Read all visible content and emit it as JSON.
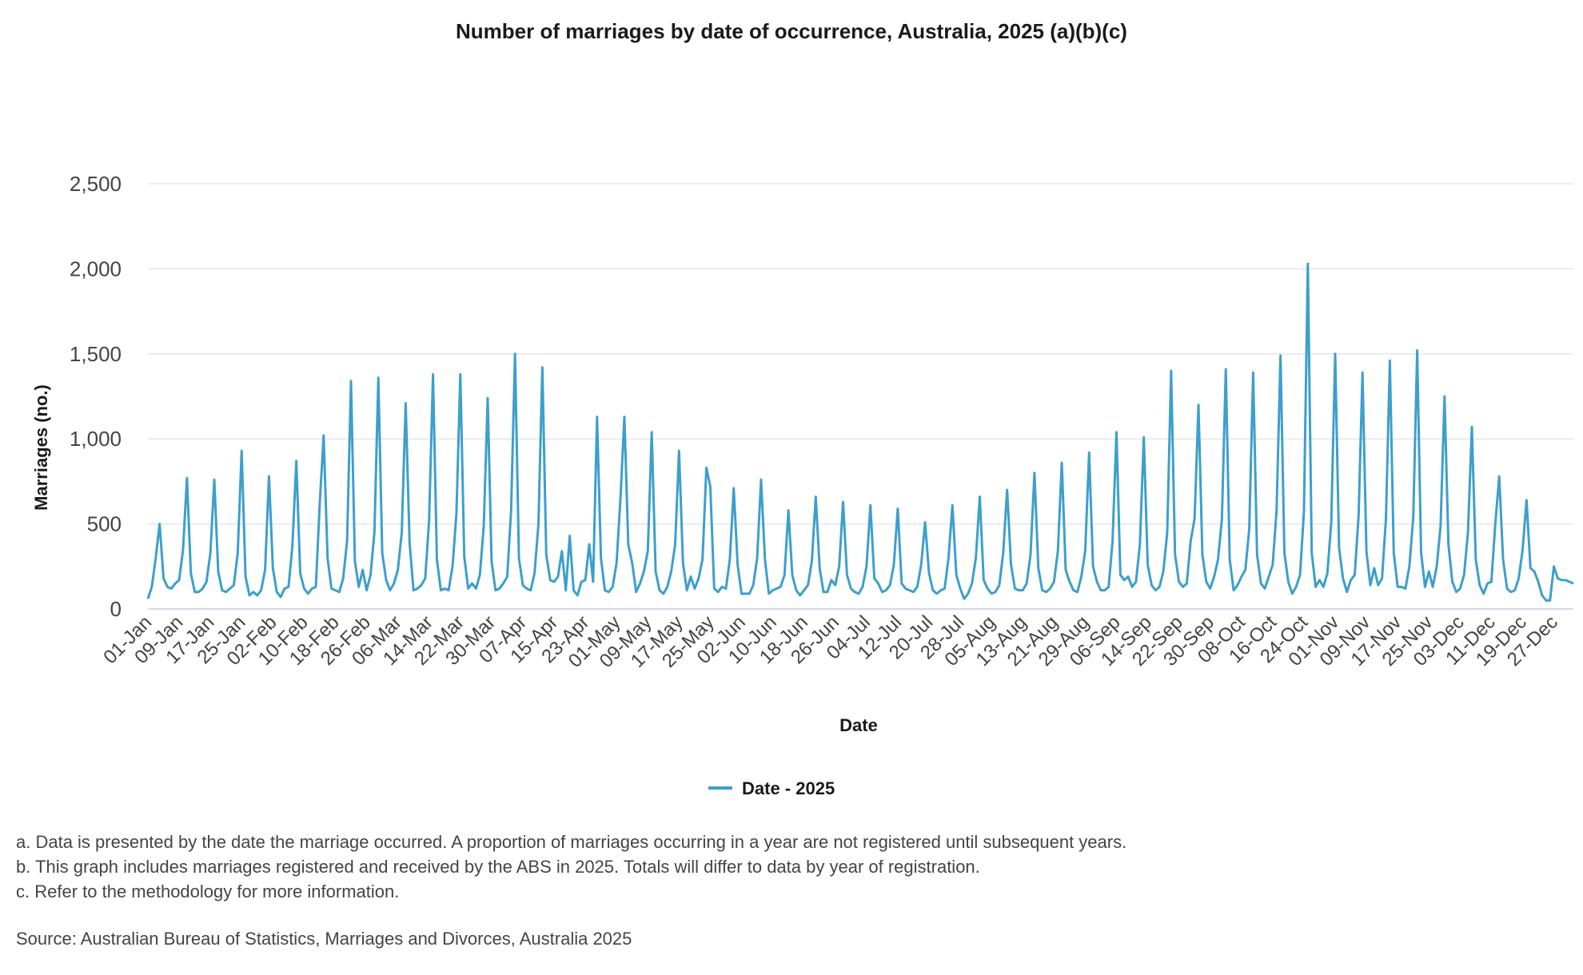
{
  "chart_data": {
    "type": "line",
    "title": "Number of marriages by date of occurrence, Australia, 2025 (a)(b)(c)",
    "xlabel": "Date",
    "ylabel": "Marriages (no.)",
    "ylim": [
      0,
      2500
    ],
    "yticks": [
      0,
      500,
      1000,
      1500,
      2000,
      2500
    ],
    "ytick_labels": [
      "0",
      "500",
      "1,000",
      "1,500",
      "2,000",
      "2,500"
    ],
    "grid": true,
    "legend_position": "bottom",
    "xtick_labels": [
      "01-Jan",
      "09-Jan",
      "17-Jan",
      "25-Jan",
      "02-Feb",
      "10-Feb",
      "18-Feb",
      "26-Feb",
      "06-Mar",
      "14-Mar",
      "22-Mar",
      "30-Mar",
      "07-Apr",
      "15-Apr",
      "23-Apr",
      "01-May",
      "09-May",
      "17-May",
      "25-May",
      "02-Jun",
      "10-Jun",
      "18-Jun",
      "26-Jun",
      "04-Jul",
      "12-Jul",
      "20-Jul",
      "28-Jul",
      "05-Aug",
      "13-Aug",
      "21-Aug",
      "29-Aug",
      "06-Sep",
      "14-Sep",
      "22-Sep",
      "30-Sep",
      "08-Oct",
      "16-Oct",
      "24-Oct",
      "01-Nov",
      "09-Nov",
      "17-Nov",
      "25-Nov",
      "03-Dec",
      "11-Dec",
      "19-Dec",
      "27-Dec"
    ],
    "x_start": "2025-01-01",
    "x_end": "2025-12-31",
    "series": [
      {
        "name": "Date - 2025",
        "color": "#3d9fcc",
        "values": [
          60,
          130,
          300,
          500,
          180,
          130,
          120,
          150,
          170,
          350,
          770,
          210,
          100,
          100,
          120,
          160,
          330,
          760,
          220,
          110,
          100,
          120,
          140,
          330,
          930,
          190,
          80,
          100,
          80,
          110,
          230,
          780,
          240,
          100,
          70,
          120,
          130,
          370,
          870,
          210,
          120,
          90,
          120,
          130,
          620,
          1020,
          300,
          120,
          110,
          100,
          180,
          400,
          1340,
          280,
          130,
          230,
          110,
          200,
          450,
          1360,
          330,
          170,
          110,
          150,
          230,
          450,
          1210,
          390,
          110,
          120,
          140,
          180,
          520,
          1380,
          290,
          110,
          120,
          110,
          250,
          560,
          1380,
          310,
          120,
          150,
          120,
          200,
          490,
          1240,
          280,
          110,
          120,
          150,
          190,
          580,
          1500,
          300,
          140,
          120,
          110,
          210,
          500,
          1420,
          320,
          170,
          160,
          190,
          340,
          110,
          430,
          110,
          80,
          160,
          170,
          380,
          160,
          1130,
          300,
          110,
          100,
          130,
          270,
          650,
          1130,
          380,
          270,
          100,
          150,
          220,
          340,
          1040,
          220,
          110,
          90,
          130,
          220,
          380,
          930,
          270,
          110,
          190,
          120,
          180,
          290,
          830,
          720,
          120,
          100,
          130,
          120,
          290,
          710,
          260,
          90,
          90,
          90,
          140,
          300,
          760,
          290,
          90,
          110,
          120,
          130,
          200,
          580,
          200,
          110,
          80,
          110,
          140,
          280,
          660,
          240,
          100,
          100,
          170,
          140,
          250,
          630,
          200,
          120,
          100,
          90,
          130,
          250,
          610,
          180,
          150,
          100,
          110,
          140,
          260,
          590,
          150,
          120,
          110,
          100,
          130,
          260,
          510,
          210,
          110,
          90,
          110,
          120,
          300,
          610,
          200,
          120,
          60,
          90,
          150,
          300,
          660,
          170,
          120,
          90,
          100,
          140,
          330,
          700,
          260,
          120,
          110,
          110,
          150,
          320,
          800,
          240,
          110,
          100,
          120,
          160,
          340,
          860,
          230,
          160,
          110,
          100,
          190,
          340,
          920,
          250,
          160,
          110,
          110,
          130,
          400,
          1040,
          200,
          170,
          190,
          130,
          160,
          380,
          1010,
          260,
          140,
          110,
          130,
          220,
          450,
          1400,
          320,
          160,
          130,
          150,
          400,
          530,
          1200,
          320,
          160,
          120,
          190,
          290,
          530,
          1410,
          290,
          110,
          140,
          190,
          230,
          470,
          1390,
          320,
          150,
          120,
          190,
          260,
          580,
          1490,
          330,
          160,
          90,
          130,
          200,
          570,
          2030,
          330,
          130,
          170,
          130,
          210,
          510,
          1500,
          360,
          180,
          100,
          170,
          200,
          550,
          1390,
          340,
          140,
          240,
          140,
          180,
          530,
          1460,
          330,
          130,
          130,
          120,
          250,
          540,
          1520,
          330,
          130,
          220,
          130,
          250,
          490,
          1250,
          380,
          160,
          100,
          120,
          200,
          450,
          1070,
          290,
          140,
          90,
          150,
          160,
          500,
          780,
          290,
          120,
          100,
          110,
          180,
          350,
          640,
          240,
          220,
          160,
          80,
          50,
          50,
          250,
          180,
          170,
          170,
          160,
          150
        ]
      }
    ]
  },
  "notes": [
    "a. Data is presented by the date the marriage occurred. A proportion of marriages occurring in a year are not registered until subsequent years.",
    "b. This graph includes marriages registered and received by the ABS in 2025. Totals will differ to data by year of registration.",
    "c. Refer to the methodology for more information."
  ],
  "source": "Source: Australian Bureau of Statistics, Marriages and Divorces, Australia 2025"
}
